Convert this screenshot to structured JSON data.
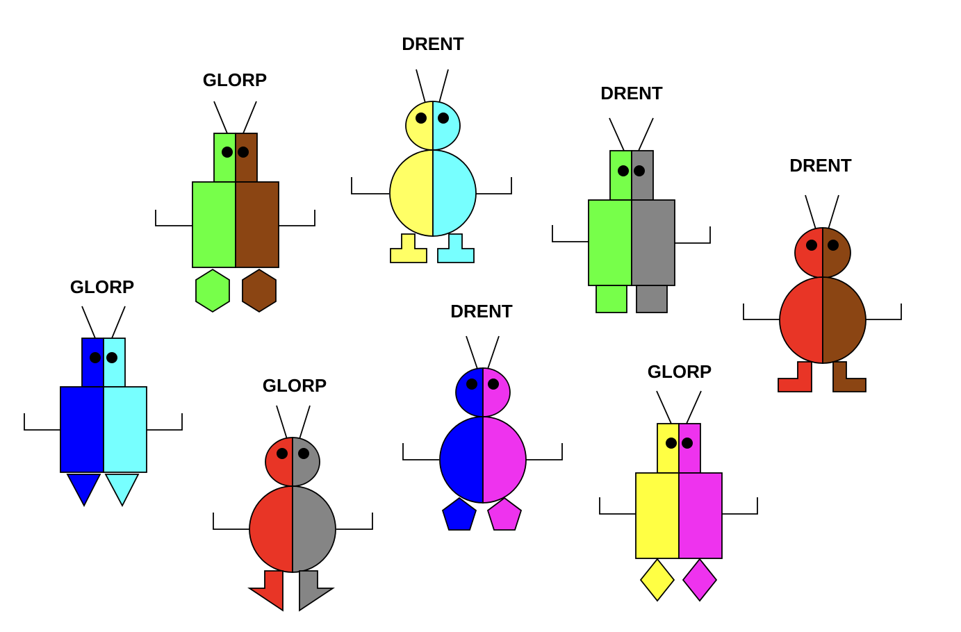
{
  "figures": [
    {
      "id": "figure-1",
      "label": "GLORP",
      "type": "square",
      "left_color": "#77FF4A",
      "right_color": "#8B4513",
      "feet": "hexagon"
    },
    {
      "id": "figure-2",
      "label": "DRENT",
      "type": "round",
      "left_color": "#FFFF66",
      "right_color": "#77FFFF",
      "feet": "boot"
    },
    {
      "id": "figure-3",
      "label": "DRENT",
      "type": "square",
      "left_color": "#77FF4A",
      "right_color": "#858585",
      "feet": "rect"
    },
    {
      "id": "figure-4",
      "label": "DRENT",
      "type": "round",
      "left_color": "#E83526",
      "right_color": "#8B4513",
      "feet": "boot"
    },
    {
      "id": "figure-5",
      "label": "GLORP",
      "type": "square",
      "left_color": "#0000FF",
      "right_color": "#77FFFF",
      "feet": "triangle"
    },
    {
      "id": "figure-6",
      "label": "GLORP",
      "type": "round",
      "left_color": "#E83526",
      "right_color": "#858585",
      "feet": "arrow"
    },
    {
      "id": "figure-7",
      "label": "DRENT",
      "type": "round",
      "left_color": "#0000FF",
      "right_color": "#EE33EE",
      "feet": "pentagon"
    },
    {
      "id": "figure-8",
      "label": "GLORP",
      "type": "square",
      "left_color": "#FFFF44",
      "right_color": "#EE33EE",
      "feet": "diamond"
    }
  ]
}
